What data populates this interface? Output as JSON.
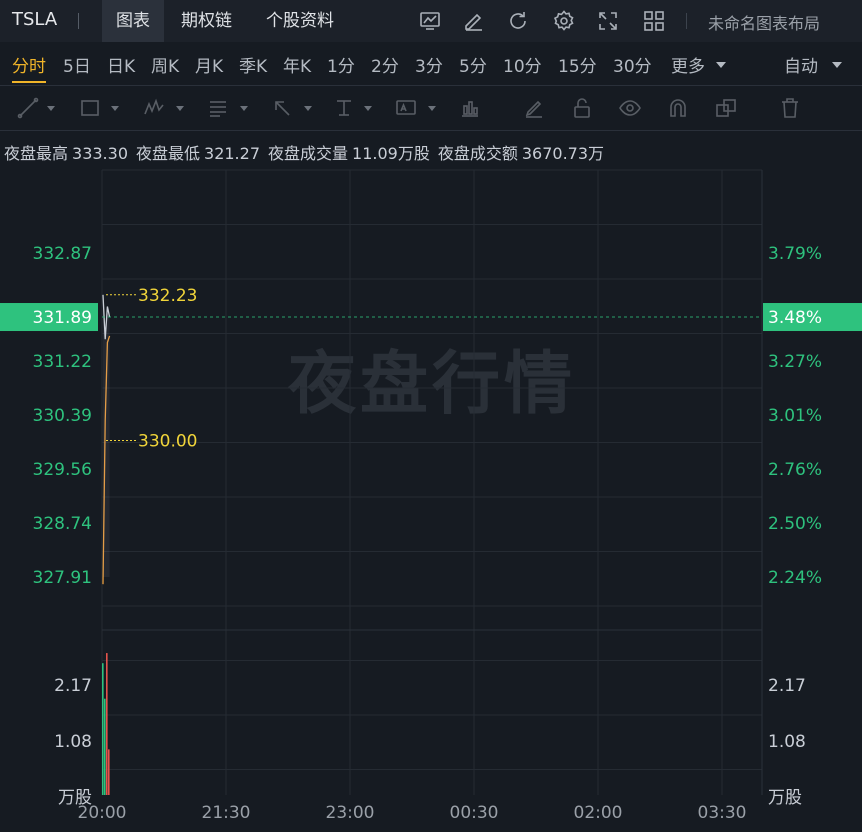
{
  "header": {
    "ticker": "TSLA",
    "tabs": [
      {
        "label": "图表",
        "active": true
      },
      {
        "label": "期权链",
        "active": false
      },
      {
        "label": "个股资料",
        "active": false
      }
    ],
    "icons": [
      "chart-settings-icon",
      "draw-icon",
      "refresh-icon",
      "gear-icon",
      "fullscreen-icon",
      "layout-grid-icon"
    ],
    "layout_name": "未命名图表布局"
  },
  "periods": {
    "items": [
      "分时",
      "5日",
      "日K",
      "周K",
      "月K",
      "季K",
      "年K",
      "1分",
      "2分",
      "3分",
      "5分",
      "10分",
      "15分",
      "30分",
      "更多"
    ],
    "active": "分时",
    "auto_label": "自动"
  },
  "drawing_tools": [
    "line-tool-icon",
    "rectangle-tool-icon",
    "wave-tool-icon",
    "fib-tool-icon",
    "arrow-tool-icon",
    "text-position-icon",
    "text-label-icon",
    "measure-icon",
    "pen-icon",
    "lock-icon",
    "eye-icon",
    "magnet-icon",
    "duplicate-icon",
    "trash-icon"
  ],
  "stats": {
    "high_label": "夜盘最高",
    "high_value": "333.30",
    "low_label": "夜盘最低",
    "low_value": "321.27",
    "volume_label": "夜盘成交量",
    "volume_value": "11.09万股",
    "amount_label": "夜盘成交额",
    "amount_value": "3670.73万"
  },
  "watermark": "夜盘行情",
  "chart_data": {
    "type": "line",
    "price_axis_left": [
      "332.87",
      "331.22",
      "330.39",
      "329.56",
      "328.74",
      "327.91"
    ],
    "price_axis_right": [
      "3.79%",
      "3.27%",
      "3.01%",
      "2.76%",
      "2.50%",
      "2.24%"
    ],
    "current_price": "331.89",
    "current_change": "3.48%",
    "annotations": [
      {
        "label": "332.23",
        "price": 332.23
      },
      {
        "label": "330.00",
        "price": 330.0
      }
    ],
    "volume_axis_left": [
      "2.17",
      "1.08",
      "万股"
    ],
    "volume_axis_right": [
      "2.17",
      "1.08",
      "万股"
    ],
    "x_ticks": [
      "20:00",
      "21:30",
      "23:00",
      "00:30",
      "02:00",
      "03:30"
    ],
    "series": [
      {
        "points": [
          {
            "t": "20:00",
            "p": 327.8
          },
          {
            "t": "20:01",
            "p": 330.3
          },
          {
            "t": "20:02",
            "p": 331.5
          },
          {
            "t": "20:03",
            "p": 331.6
          }
        ]
      },
      {
        "points": [
          {
            "t": "20:00",
            "p": 332.23
          },
          {
            "t": "20:01",
            "p": 331.55
          },
          {
            "t": "20:02",
            "p": 332.05
          },
          {
            "t": "20:03",
            "p": 331.89
          }
        ]
      }
    ],
    "volumes": [
      {
        "t": "20:00",
        "v": 2.6,
        "dir": "up"
      },
      {
        "t": "20:01",
        "v": 1.9,
        "dir": "up"
      },
      {
        "t": "20:02",
        "v": 2.8,
        "dir": "down"
      },
      {
        "t": "20:03",
        "v": 0.9,
        "dir": "down"
      }
    ],
    "colors": {
      "up": "#2ec27e",
      "down": "#e5534b",
      "price_line": "#e69a3c",
      "avg_line": "#c9ced6",
      "annotation": "#f0d43a",
      "current": "#2ec27e"
    }
  }
}
